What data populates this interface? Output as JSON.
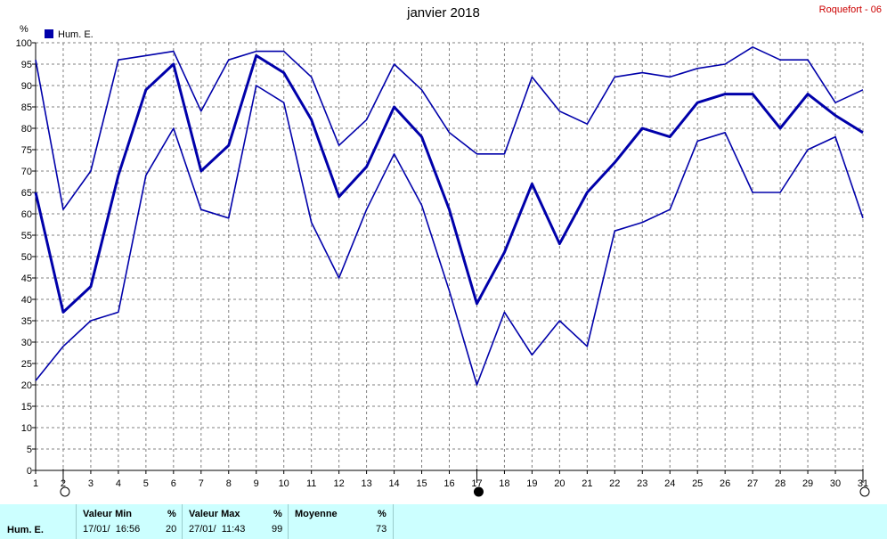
{
  "title": "janvier 2018",
  "station": "Roquefort - 06",
  "legend": {
    "label": "Hum. E.",
    "color": "#0000aa"
  },
  "chart_data": {
    "type": "line",
    "title": "janvier 2018",
    "ylabel": "%",
    "ylim": [
      0,
      100
    ],
    "yticks": [
      0,
      5,
      10,
      15,
      20,
      25,
      30,
      35,
      40,
      45,
      50,
      55,
      60,
      65,
      70,
      75,
      80,
      85,
      90,
      95,
      100
    ],
    "x": [
      1,
      2,
      3,
      4,
      5,
      6,
      7,
      8,
      9,
      10,
      11,
      12,
      13,
      14,
      15,
      16,
      17,
      18,
      19,
      20,
      21,
      22,
      23,
      24,
      25,
      26,
      27,
      28,
      29,
      30,
      31
    ],
    "xlim": [
      1,
      31
    ],
    "grid": true,
    "legend_position": "top-left",
    "series": [
      {
        "name": "Hum. E.",
        "role": "max",
        "values": [
          96,
          61,
          70,
          96,
          97,
          98,
          84,
          96,
          98,
          98,
          92,
          76,
          82,
          95,
          89,
          79,
          74,
          74,
          92,
          84,
          81,
          92,
          93,
          92,
          94,
          95,
          99,
          96,
          96,
          86,
          89
        ]
      },
      {
        "role": "mean",
        "values": [
          65,
          37,
          43,
          69,
          89,
          95,
          70,
          76,
          97,
          93,
          82,
          64,
          71,
          85,
          78,
          61,
          39,
          51,
          67,
          53,
          65,
          72,
          80,
          78,
          86,
          88,
          88,
          80,
          88,
          83,
          79
        ]
      },
      {
        "role": "min",
        "values": [
          21,
          29,
          35,
          37,
          69,
          80,
          61,
          59,
          90,
          86,
          58,
          45,
          61,
          74,
          62,
          42,
          20,
          37,
          27,
          35,
          29,
          56,
          58,
          61,
          77,
          79,
          65,
          65,
          75,
          78,
          59
        ]
      }
    ],
    "moon_phases": [
      {
        "day": 2,
        "phase": "full"
      },
      {
        "day": 17,
        "phase": "new"
      },
      {
        "day": 31,
        "phase": "full"
      }
    ]
  },
  "footer": {
    "row_label": "Hum. E.",
    "min": {
      "label": "Valeur Min",
      "unit": "%",
      "date": "17/01/  16:56",
      "value": "20"
    },
    "max": {
      "label": "Valeur Max",
      "unit": "%",
      "date": "27/01/  11:43",
      "value": "99"
    },
    "avg": {
      "label": "Moyenne",
      "unit": "%",
      "value": "73"
    }
  }
}
